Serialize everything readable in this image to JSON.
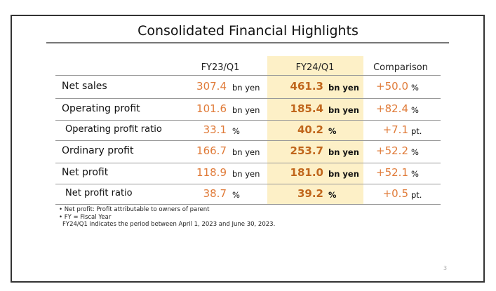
{
  "title": "Consolidated Financial Highlights",
  "headers": [
    "FY23/Q1",
    "FY24/Q1",
    "Comparison"
  ],
  "rows": [
    {
      "label": "Net sales",
      "prev": "307.4",
      "prev_unit": "bn yen",
      "cur": "461.3",
      "cur_unit": "bn yen",
      "cmp": "+50.0",
      "cmp_unit": "%"
    },
    {
      "label": "Operating profit",
      "prev": "101.6",
      "prev_unit": "bn yen",
      "cur": "185.4",
      "cur_unit": "bn yen",
      "cmp": "+82.4",
      "cmp_unit": "%"
    },
    {
      "label": "Operating profit ratio",
      "prev": "33.1",
      "prev_unit": "%",
      "cur": "40.2",
      "cur_unit": "%",
      "cmp": "+7.1",
      "cmp_unit": "pt."
    },
    {
      "label": "Ordinary profit",
      "prev": "166.7",
      "prev_unit": "bn yen",
      "cur": "253.7",
      "cur_unit": "bn yen",
      "cmp": "+52.2",
      "cmp_unit": "%"
    },
    {
      "label": "Net profit",
      "prev": "118.9",
      "prev_unit": "bn yen",
      "cur": "181.0",
      "cur_unit": "bn yen",
      "cmp": "+52.1",
      "cmp_unit": "%"
    },
    {
      "label": "Net profit ratio",
      "prev": "38.7",
      "prev_unit": "%",
      "cur": "39.2",
      "cur_unit": "%",
      "cmp": "+0.5",
      "cmp_unit": "pt."
    }
  ],
  "notes": [
    "• Net profit: Profit attributable to owners of parent",
    "• FY = Fiscal Year",
    "FY24/Q1 indicates the period between April 1, 2023 and June 30, 2023."
  ],
  "page_number": "3",
  "colors": {
    "highlight": "#fdf0c7",
    "value": "#e07b39",
    "value_bold": "#c0661c"
  }
}
